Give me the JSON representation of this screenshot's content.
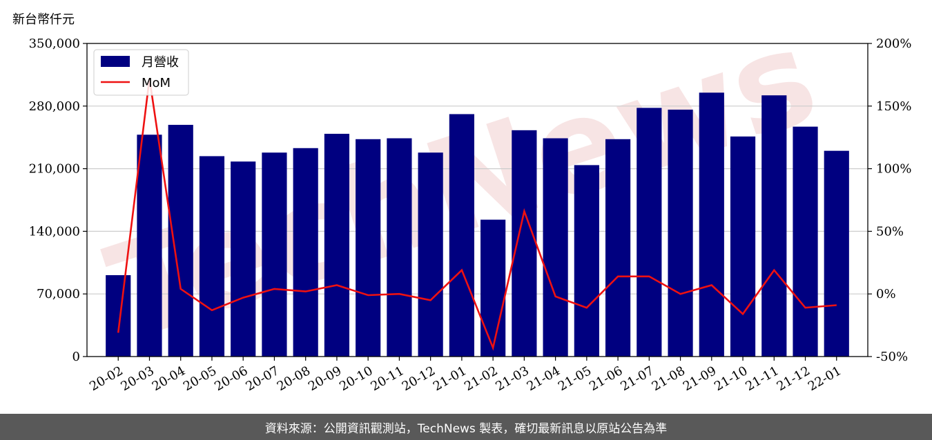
{
  "unit_label": "新台幣仟元",
  "footer_text": "資料來源：公開資訊觀測站，TechNews 製表，確切最新訊息以原站公告為準",
  "watermark": "TechNews",
  "colors": {
    "bar": "#000080",
    "line": "#ee1111",
    "grid": "#cccccc",
    "footer_bg": "#595959",
    "watermark": "#f6dede"
  },
  "chart_data": {
    "type": "bar",
    "categories": [
      "20-02",
      "20-03",
      "20-04",
      "20-05",
      "20-06",
      "20-07",
      "20-08",
      "20-09",
      "20-10",
      "20-11",
      "20-12",
      "21-01",
      "21-02",
      "21-03",
      "21-04",
      "21-05",
      "21-06",
      "21-07",
      "21-08",
      "21-09",
      "21-10",
      "21-11",
      "21-12",
      "22-01"
    ],
    "series": [
      {
        "name": "月營收",
        "type": "bar",
        "axis": "left",
        "values": [
          91000,
          248000,
          259000,
          224000,
          218000,
          228000,
          233000,
          249000,
          243000,
          244000,
          228000,
          271000,
          153000,
          253000,
          244000,
          214000,
          243000,
          278000,
          276000,
          295000,
          246000,
          292000,
          257000,
          230000
        ]
      },
      {
        "name": "MoM",
        "type": "line",
        "axis": "right",
        "unit": "%",
        "values": [
          -31,
          172,
          4,
          -13,
          -3,
          4,
          2,
          7,
          -1,
          0,
          -5,
          19,
          -43,
          66,
          -2,
          -11,
          14,
          14,
          0,
          7,
          -16,
          19,
          -11,
          -9
        ]
      }
    ],
    "y_left": {
      "lim": [
        0,
        350000
      ],
      "ticks": [
        0,
        70000,
        140000,
        210000,
        280000,
        350000
      ],
      "tick_labels": [
        "0",
        "70,000",
        "140,000",
        "210,000",
        "280,000",
        "350,000"
      ]
    },
    "y_right": {
      "lim": [
        -50,
        200
      ],
      "ticks": [
        -50,
        0,
        50,
        100,
        150,
        200
      ],
      "tick_labels": [
        "-50%",
        "0%",
        "50%",
        "100%",
        "150%",
        "200%"
      ]
    },
    "grid": "horizontal",
    "legend_position": "top-left"
  }
}
